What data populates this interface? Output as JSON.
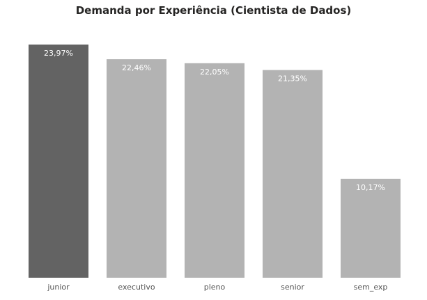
{
  "chart_data": {
    "type": "bar",
    "title": "Demanda por Experiência (Cientista de Dados)",
    "categories": [
      "junior",
      "executivo",
      "pleno",
      "senior",
      "sem_exp"
    ],
    "values": [
      23.97,
      22.46,
      22.05,
      21.35,
      10.17
    ],
    "data_labels": [
      "23,97%",
      "22,46%",
      "22,05%",
      "21,35%",
      "10,17%"
    ],
    "highlighted_index": 0,
    "colors": {
      "highlight": "#636363",
      "default": "#b3b3b3",
      "label_text": "#ffffff",
      "tick_text": "#555555",
      "title_text": "#252423"
    },
    "ylim": [
      0,
      23.97
    ],
    "grid": false,
    "legend": "none"
  }
}
